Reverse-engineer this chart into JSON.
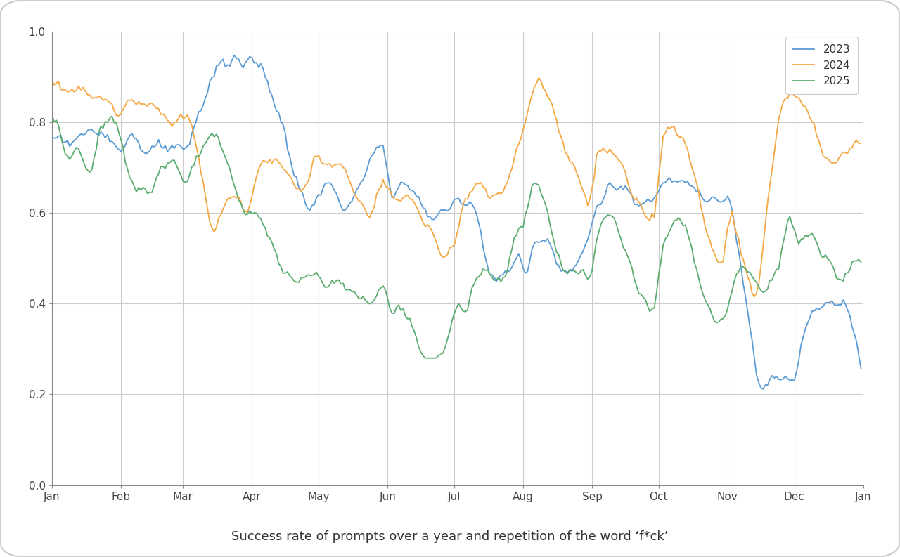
{
  "title": "Success rate of prompts over a year and repetition of the word ‘f*ck’",
  "ylim": [
    0.0,
    1.0
  ],
  "yticks": [
    0.0,
    0.2,
    0.4,
    0.6,
    0.8,
    1.0
  ],
  "months": [
    "Jan",
    "Feb",
    "Mar",
    "Apr",
    "May",
    "Jun",
    "Jul",
    "Aug",
    "Sep",
    "Oct",
    "Nov",
    "Dec",
    "Jan"
  ],
  "month_positions": [
    0,
    31,
    59,
    90,
    120,
    151,
    181,
    212,
    243,
    273,
    304,
    334,
    365
  ],
  "colors": {
    "2023": "#5B9BD5",
    "2024": "#F5A742",
    "2025": "#5BAD6F"
  },
  "legend_labels": [
    "2023",
    "2024",
    "2025"
  ],
  "bg_color": "#FFFFFF",
  "chart_bg": "#FFFFFF",
  "grid_color": "#CCCCCC",
  "n_points": 365
}
